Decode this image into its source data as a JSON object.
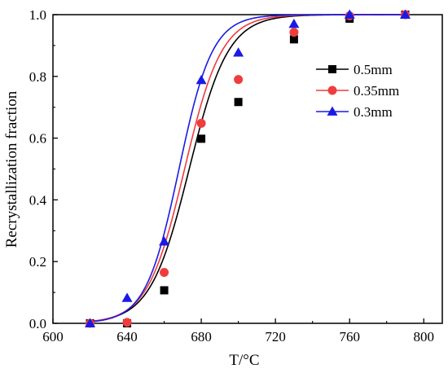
{
  "chart_data": {
    "type": "scatter",
    "xlabel": "T/°C",
    "ylabel": "Recrystallization fraction",
    "xlim": [
      600,
      810
    ],
    "ylim": [
      0.0,
      1.0
    ],
    "x_ticks": [
      "600",
      "640",
      "680",
      "720",
      "760",
      "800"
    ],
    "x_tick_values": [
      600,
      640,
      680,
      720,
      760,
      800
    ],
    "y_ticks": [
      "0.0",
      "0.2",
      "0.4",
      "0.6",
      "0.8",
      "1.0"
    ],
    "y_tick_values": [
      0.0,
      0.2,
      0.4,
      0.6,
      0.8,
      1.0
    ],
    "grid": false,
    "legend_position": "top-right",
    "series": [
      {
        "name": "0.5mm",
        "marker": "square",
        "color": "#000000",
        "x": [
          620,
          640,
          660,
          680,
          700,
          730,
          760,
          790
        ],
        "y": [
          0.0,
          0.0,
          0.107,
          0.598,
          0.717,
          0.92,
          0.987,
          1.0
        ],
        "fit": {
          "mid": 673.5,
          "width": 10.5
        }
      },
      {
        "name": "0.35mm",
        "marker": "circle",
        "color": "#f03c3c",
        "x": [
          620,
          640,
          660,
          680,
          700,
          730,
          760,
          790
        ],
        "y": [
          0.0,
          0.003,
          0.165,
          0.648,
          0.79,
          0.943,
          0.996,
          1.0
        ],
        "fit": {
          "mid": 671.0,
          "width": 10.0
        }
      },
      {
        "name": "0.3mm",
        "marker": "triangle",
        "color": "#1a1ae6",
        "x": [
          620,
          640,
          660,
          680,
          700,
          730,
          760,
          790
        ],
        "y": [
          0.0,
          0.082,
          0.265,
          0.788,
          0.877,
          0.97,
          1.0,
          1.0
        ],
        "fit": {
          "mid": 668.0,
          "width": 9.0
        }
      }
    ]
  }
}
